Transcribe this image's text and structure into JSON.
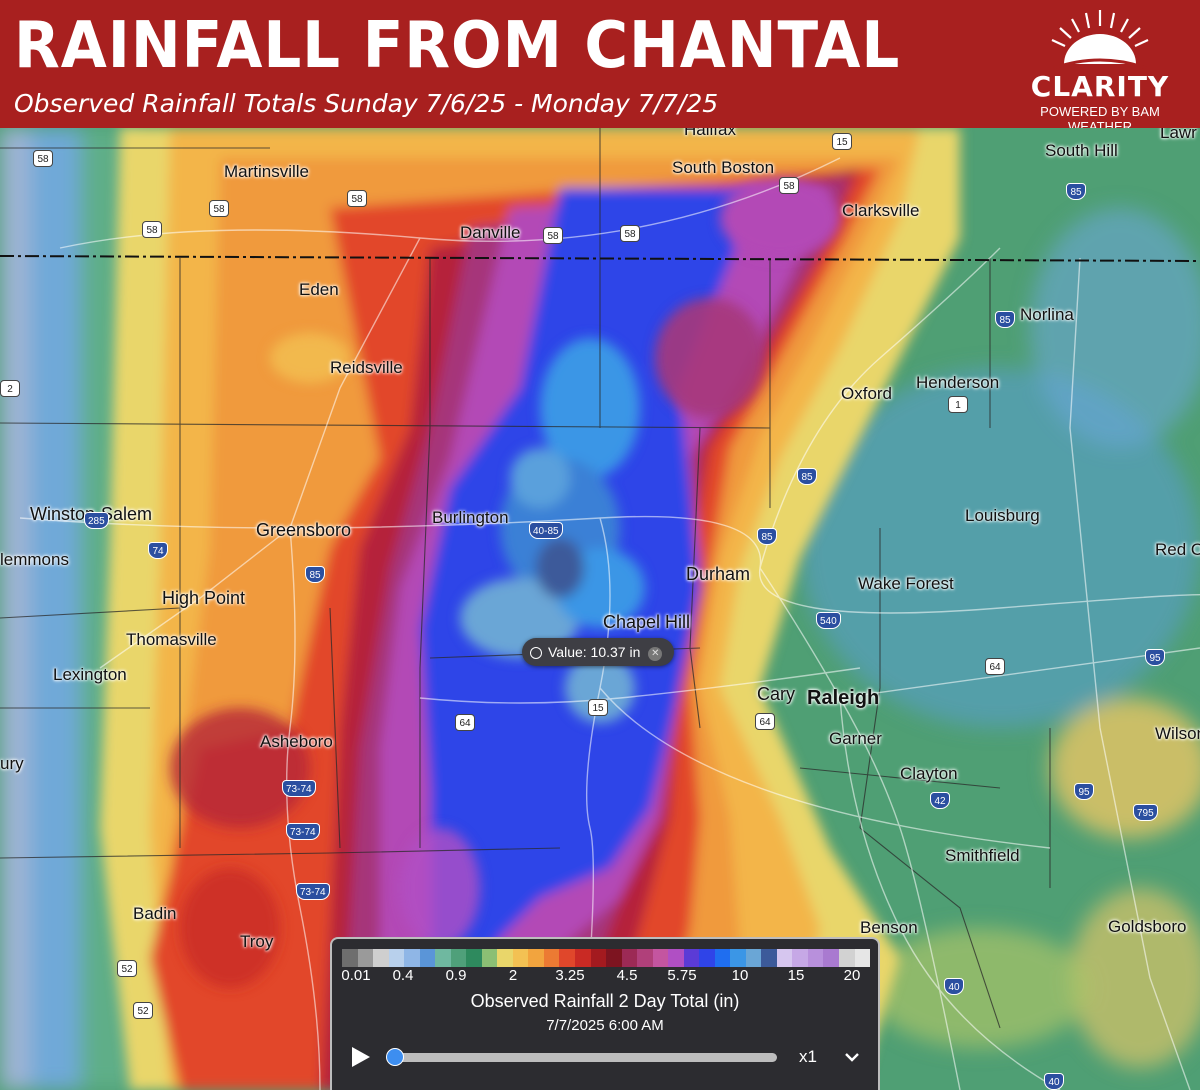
{
  "header": {
    "title": "RAINFALL FROM CHANTAL",
    "subtitle": "Observed Rainfall Totals Sunday 7/6/25 - Monday 7/7/25",
    "brand": "CLARITY",
    "brand_sub": "POWERED BY BAM WEATHER",
    "background_color": "#a8201f"
  },
  "map": {
    "cities": [
      {
        "name": "Halifax",
        "size": "small"
      },
      {
        "name": "South Boston",
        "size": "small"
      },
      {
        "name": "South Hill",
        "size": "small"
      },
      {
        "name": "Lawr",
        "size": "small"
      },
      {
        "name": "Martinsville",
        "size": "small"
      },
      {
        "name": "Clarksville",
        "size": "small"
      },
      {
        "name": "Danville",
        "size": "small"
      },
      {
        "name": "Eden",
        "size": "small"
      },
      {
        "name": "Norlina",
        "size": "small"
      },
      {
        "name": "Reidsville",
        "size": "small"
      },
      {
        "name": "Henderson",
        "size": "small"
      },
      {
        "name": "Oxford",
        "size": "small"
      },
      {
        "name": "Winston-Salem",
        "size": "med"
      },
      {
        "name": "Greensboro",
        "size": "med"
      },
      {
        "name": "Burlington",
        "size": "small"
      },
      {
        "name": "Louisburg",
        "size": "small"
      },
      {
        "name": "lemmons",
        "size": "small"
      },
      {
        "name": "Red Oa",
        "size": "small"
      },
      {
        "name": "Durham",
        "size": "med"
      },
      {
        "name": "Wake Forest",
        "size": "small"
      },
      {
        "name": "High Point",
        "size": "med"
      },
      {
        "name": "Chapel Hill",
        "size": "med"
      },
      {
        "name": "Thomasville",
        "size": "small"
      },
      {
        "name": "Lexington",
        "size": "small"
      },
      {
        "name": "Cary",
        "size": "med"
      },
      {
        "name": "Raleigh",
        "size": "big"
      },
      {
        "name": "Wilson",
        "size": "small"
      },
      {
        "name": "Asheboro",
        "size": "small"
      },
      {
        "name": "Garner",
        "size": "small"
      },
      {
        "name": "ury",
        "size": "small"
      },
      {
        "name": "Clayton",
        "size": "small"
      },
      {
        "name": "Smithfield",
        "size": "small"
      },
      {
        "name": "Badin",
        "size": "small"
      },
      {
        "name": "Benson",
        "size": "small"
      },
      {
        "name": "Goldsboro",
        "size": "small"
      },
      {
        "name": "Troy",
        "size": "small"
      }
    ],
    "shields": [
      {
        "label": "58",
        "type": "us"
      },
      {
        "label": "15",
        "type": "us"
      },
      {
        "label": "58",
        "type": "us"
      },
      {
        "label": "58",
        "type": "us"
      },
      {
        "label": "85",
        "type": "interstate"
      },
      {
        "label": "58",
        "type": "us"
      },
      {
        "label": "58",
        "type": "us"
      },
      {
        "label": "58",
        "type": "us"
      },
      {
        "label": "58",
        "type": "us"
      },
      {
        "label": "85",
        "type": "interstate"
      },
      {
        "label": "1",
        "type": "us"
      },
      {
        "label": "2",
        "type": "us"
      },
      {
        "label": "85",
        "type": "interstate"
      },
      {
        "label": "285",
        "type": "interstate"
      },
      {
        "label": "74",
        "type": "interstate"
      },
      {
        "label": "40-85",
        "type": "interstate"
      },
      {
        "label": "85",
        "type": "interstate"
      },
      {
        "label": "85",
        "type": "interstate"
      },
      {
        "label": "540",
        "type": "interstate"
      },
      {
        "label": "64",
        "type": "us"
      },
      {
        "label": "95",
        "type": "interstate"
      },
      {
        "label": "64",
        "type": "us"
      },
      {
        "label": "15",
        "type": "us"
      },
      {
        "label": "64",
        "type": "us"
      },
      {
        "label": "73-74",
        "type": "interstate"
      },
      {
        "label": "73-74",
        "type": "interstate"
      },
      {
        "label": "42",
        "type": "interstate"
      },
      {
        "label": "95",
        "type": "interstate"
      },
      {
        "label": "795",
        "type": "interstate"
      },
      {
        "label": "73-74",
        "type": "interstate"
      },
      {
        "label": "52",
        "type": "us"
      },
      {
        "label": "52",
        "type": "us"
      },
      {
        "label": "40",
        "type": "interstate"
      },
      {
        "label": "40",
        "type": "interstate"
      }
    ],
    "value_tooltip": "Value: 10.37 in"
  },
  "legend": {
    "colors": [
      "#6e6e6e",
      "#9a9a9a",
      "#cfcfcf",
      "#b8d0ec",
      "#8fb6e6",
      "#5a95d8",
      "#6fb8a0",
      "#4fa07a",
      "#2e8a5e",
      "#8bbf74",
      "#e9d66a",
      "#f3c153",
      "#f2a43e",
      "#ec7a33",
      "#e0472b",
      "#c92a24",
      "#a31a1f",
      "#7d1420",
      "#9c2a55",
      "#b0407a",
      "#c455a0",
      "#b04fc4",
      "#5b3bd6",
      "#2f44e8",
      "#1f6ef0",
      "#3b96e6",
      "#6aa6d6",
      "#3c5a9a",
      "#d6c6ef",
      "#c6a8e6",
      "#b890dc",
      "#a97ad0",
      "#d2d2d2",
      "#e6e6e6"
    ],
    "ticks": [
      "0.01",
      "0.4",
      "0.9",
      "2",
      "3.25",
      "4.5",
      "5.75",
      "10",
      "15",
      "20"
    ],
    "title": "Observed Rainfall 2 Day Total (in)",
    "time": "7/7/2025 6:00 AM",
    "speed": "x1",
    "progress": 0
  }
}
